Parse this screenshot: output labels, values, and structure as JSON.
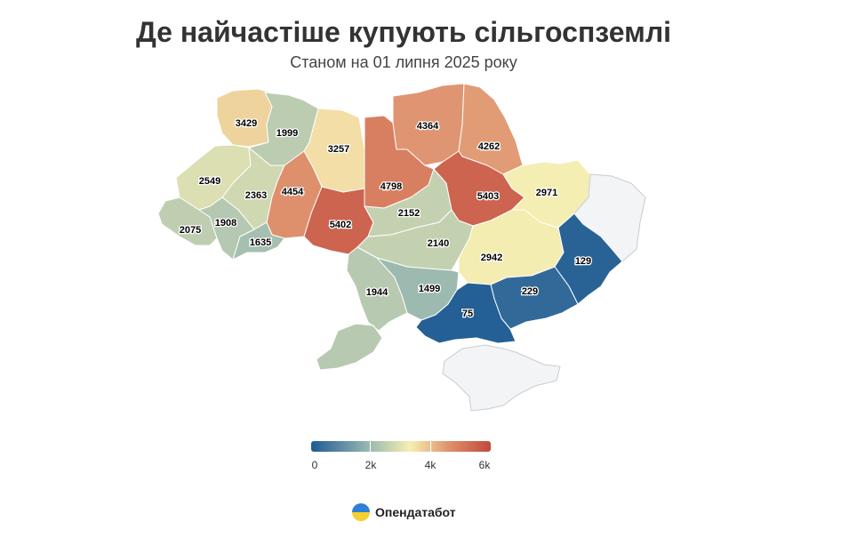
{
  "title": "Де найчастіше купують сільгоспземлі",
  "subtitle": "Станом на 01 липня 2025 року",
  "legend": {
    "ticks": [
      "0",
      "2k",
      "4k",
      "6k"
    ],
    "tick_values": [
      0,
      2000,
      4000,
      6000
    ],
    "min": 0,
    "max": 6000,
    "colors": [
      "#1e5b94",
      "#9dbab0",
      "#f6efb2",
      "#dd8c6a",
      "#c2493e"
    ]
  },
  "brand": {
    "name": "Опендатабот"
  },
  "map": {
    "nodata_color": "#f3f4f6",
    "regions": [
      {
        "id": "volyn",
        "value": 3429,
        "label": "3429"
      },
      {
        "id": "rivne",
        "value": 1999,
        "label": "1999"
      },
      {
        "id": "zhytomyr",
        "value": 3257,
        "label": "3257"
      },
      {
        "id": "kyiv",
        "value": 4798,
        "label": "4798"
      },
      {
        "id": "chernihiv",
        "value": 4364,
        "label": "4364"
      },
      {
        "id": "sumy",
        "value": 4262,
        "label": "4262"
      },
      {
        "id": "lviv",
        "value": 2549,
        "label": "2549"
      },
      {
        "id": "ternopil",
        "value": 2363,
        "label": "2363"
      },
      {
        "id": "khmelnytskyi",
        "value": 4454,
        "label": "4454"
      },
      {
        "id": "vinnytsia",
        "value": 5402,
        "label": "5402"
      },
      {
        "id": "cherkasy",
        "value": 2152,
        "label": "2152"
      },
      {
        "id": "poltava",
        "value": 5403,
        "label": "5403"
      },
      {
        "id": "kharkiv",
        "value": 2971,
        "label": "2971"
      },
      {
        "id": "zakarpattia",
        "value": 2075,
        "label": "2075"
      },
      {
        "id": "ivano-frankivsk",
        "value": 1908,
        "label": "1908"
      },
      {
        "id": "chernivtsi",
        "value": 1635,
        "label": "1635"
      },
      {
        "id": "kirovohrad",
        "value": 2140,
        "label": "2140"
      },
      {
        "id": "dnipropetrovsk",
        "value": 2942,
        "label": "2942"
      },
      {
        "id": "donetsk",
        "value": 129,
        "label": "129"
      },
      {
        "id": "mykolaiv",
        "value": 1499,
        "label": "1499"
      },
      {
        "id": "odesa",
        "value": 1944,
        "label": "1944"
      },
      {
        "id": "zaporizhzhia",
        "value": 229,
        "label": "229"
      },
      {
        "id": "kherson",
        "value": 75,
        "label": "75"
      },
      {
        "id": "luhansk",
        "value": null,
        "label": ""
      },
      {
        "id": "crimea",
        "value": null,
        "label": ""
      }
    ]
  }
}
